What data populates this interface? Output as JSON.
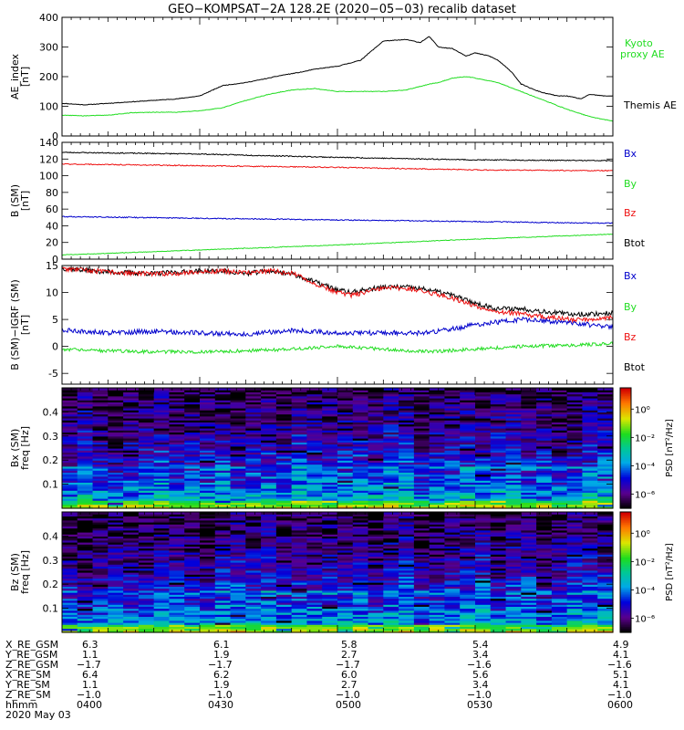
{
  "title": "GEO−KOMPSAT−2A 128.2E (2020−05−03) recalib dataset",
  "colors": {
    "black": "#000000",
    "green": "#22dd22",
    "red": "#ee1111",
    "blue": "#0000cc",
    "kyoto": "#22dd22"
  },
  "chart_data": [
    {
      "id": "ae",
      "type": "line",
      "ylabel": "AE_index [nT]",
      "ylim": [
        0,
        400
      ],
      "yticks": [
        0,
        100,
        200,
        300,
        400
      ],
      "legend": [
        "Kyoto proxy AE",
        "Themis AE"
      ],
      "series": [
        {
          "name": "Themis AE",
          "color": "black",
          "x": [
            0,
            5,
            10,
            15,
            20,
            25,
            30,
            35,
            40,
            45,
            48,
            52,
            55,
            60,
            65,
            70,
            75,
            78,
            80,
            82,
            85,
            88,
            90,
            93,
            95,
            98,
            100,
            103,
            105,
            108,
            110,
            113,
            115,
            118,
            120
          ],
          "y": [
            110,
            105,
            110,
            115,
            120,
            125,
            135,
            170,
            180,
            195,
            205,
            215,
            225,
            235,
            255,
            320,
            325,
            315,
            335,
            300,
            295,
            270,
            280,
            270,
            255,
            215,
            175,
            155,
            145,
            135,
            135,
            125,
            140,
            135,
            135
          ]
        },
        {
          "name": "Kyoto proxy AE",
          "color": "green",
          "x": [
            0,
            5,
            10,
            15,
            20,
            25,
            30,
            35,
            40,
            45,
            50,
            55,
            60,
            65,
            70,
            75,
            80,
            82,
            85,
            88,
            90,
            95,
            100,
            105,
            110,
            115,
            120
          ],
          "y": [
            70,
            68,
            70,
            78,
            80,
            80,
            85,
            95,
            120,
            140,
            155,
            160,
            150,
            150,
            150,
            155,
            175,
            180,
            195,
            200,
            195,
            180,
            150,
            120,
            90,
            65,
            50
          ]
        }
      ]
    },
    {
      "id": "b",
      "type": "line",
      "ylabel": "B (SM) [nT]",
      "ylim": [
        0,
        140
      ],
      "yticks": [
        0,
        20,
        40,
        60,
        80,
        100,
        120,
        140
      ],
      "legend": [
        "Bx",
        "By",
        "Bz",
        "Btot"
      ],
      "series": [
        {
          "name": "Btot",
          "color": "black",
          "x": [
            0,
            30,
            60,
            90,
            120
          ],
          "y": [
            128,
            126,
            122,
            119,
            118
          ]
        },
        {
          "name": "Bz",
          "color": "red",
          "x": [
            0,
            30,
            60,
            90,
            120
          ],
          "y": [
            114,
            112,
            110,
            107,
            106
          ]
        },
        {
          "name": "Bx",
          "color": "blue",
          "x": [
            0,
            30,
            60,
            90,
            120
          ],
          "y": [
            51,
            49,
            47,
            45,
            43
          ]
        },
        {
          "name": "By",
          "color": "green",
          "x": [
            0,
            30,
            60,
            90,
            120
          ],
          "y": [
            5,
            11,
            17,
            24,
            30
          ]
        }
      ]
    },
    {
      "id": "db",
      "type": "line",
      "ylabel": "B (SM)−IGRF (SM) [nT]",
      "ylim": [
        -7,
        15
      ],
      "yticks": [
        -5,
        0,
        5,
        10,
        15
      ],
      "legend": [
        "Bx",
        "By",
        "Bz",
        "Btot"
      ],
      "series": [
        {
          "name": "Btot",
          "color": "black",
          "x": [
            0,
            10,
            20,
            30,
            35,
            40,
            45,
            50,
            55,
            60,
            63,
            66,
            70,
            75,
            80,
            85,
            90,
            95,
            100,
            105,
            110,
            115,
            120
          ],
          "y": [
            14.5,
            13.8,
            13.5,
            14,
            14,
            13.5,
            14,
            13.5,
            12,
            10.5,
            10,
            10.5,
            11,
            11,
            10.5,
            9.5,
            8,
            7,
            7,
            6.5,
            6,
            6,
            6.2
          ]
        },
        {
          "name": "Bz",
          "color": "red",
          "x": [
            0,
            10,
            20,
            30,
            35,
            40,
            45,
            50,
            55,
            60,
            63,
            66,
            70,
            75,
            80,
            85,
            90,
            95,
            100,
            105,
            110,
            115,
            120
          ],
          "y": [
            14.4,
            13.8,
            13.4,
            13.8,
            14,
            13.6,
            14,
            13.6,
            11.7,
            10,
            9.5,
            10,
            10.8,
            10.8,
            10,
            9,
            7.5,
            6.5,
            6,
            5.5,
            5,
            5,
            5.5
          ]
        },
        {
          "name": "Bx",
          "color": "blue",
          "x": [
            0,
            10,
            20,
            30,
            40,
            50,
            60,
            70,
            80,
            90,
            95,
            100,
            110,
            115,
            120
          ],
          "y": [
            3,
            2.5,
            2.8,
            2.5,
            2.3,
            3,
            2.5,
            2.5,
            2.5,
            4,
            4.5,
            5,
            4.5,
            4,
            3.5
          ]
        },
        {
          "name": "By",
          "color": "green",
          "x": [
            0,
            10,
            20,
            30,
            40,
            50,
            60,
            70,
            80,
            90,
            100,
            110,
            120
          ],
          "y": [
            -0.5,
            -0.8,
            -1,
            -1,
            -0.8,
            -0.5,
            0,
            -0.5,
            -1,
            -0.5,
            0,
            0.2,
            0.5
          ]
        }
      ]
    },
    {
      "id": "specbx",
      "type": "heatmap",
      "ylabel": "Bx (SM) freq [Hz]",
      "yticks": [
        0.1,
        0.2,
        0.3,
        0.4
      ],
      "ylim": [
        0,
        0.5
      ],
      "colorbar_label": "PSD [nT²/Hz]",
      "colorbar_ticks": [
        "10⁰",
        "10⁻²",
        "10⁻⁴",
        "10⁻⁶"
      ],
      "colorbar_exp": [
        0,
        -2,
        -4,
        -6
      ],
      "colorbar_range": [
        -7,
        1.5
      ]
    },
    {
      "id": "specbz",
      "type": "heatmap",
      "ylabel": "Bz (SM) freq [Hz]",
      "yticks": [
        0.1,
        0.2,
        0.3,
        0.4
      ],
      "ylim": [
        0,
        0.5
      ],
      "colorbar_label": "PSD [nT²/Hz]",
      "colorbar_ticks": [
        "10⁰",
        "10⁻²",
        "10⁻⁴",
        "10⁻⁶"
      ],
      "colorbar_exp": [
        0,
        -2,
        -4,
        -6
      ],
      "colorbar_range": [
        -7,
        1.5
      ]
    }
  ],
  "ephemeris": {
    "labels": [
      "X_RE_GSM",
      "Y_RE_GSM",
      "Z_RE_GSM",
      "X_RE_SM",
      "Y_RE_SM",
      "Z_RE_SM",
      "hhmm"
    ],
    "columns": [
      [
        "6.3",
        "1.1",
        "−1.7",
        "6.4",
        "1.1",
        "−1.0",
        "0400"
      ],
      [
        "6.1",
        "1.9",
        "−1.7",
        "6.2",
        "1.9",
        "−1.0",
        "0430"
      ],
      [
        "5.8",
        "2.7",
        "−1.7",
        "6.0",
        "2.7",
        "−1.0",
        "0500"
      ],
      [
        "5.4",
        "3.4",
        "−1.6",
        "5.6",
        "3.4",
        "−1.0",
        "0530"
      ],
      [
        "4.9",
        "4.1",
        "−1.6",
        "5.1",
        "4.1",
        "−1.0",
        "0600"
      ]
    ],
    "date": "2020 May 03"
  }
}
